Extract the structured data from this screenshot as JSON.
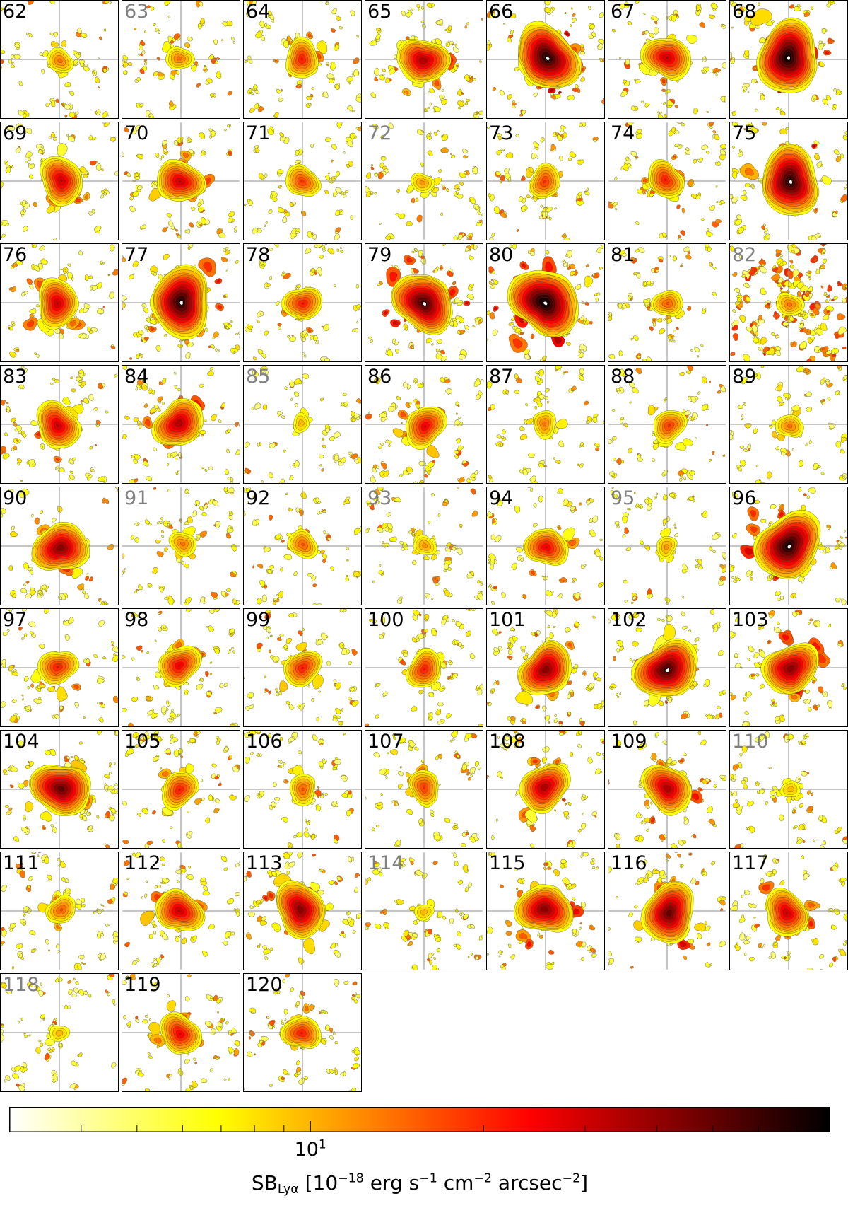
{
  "chart_data": {
    "type": "heatmap",
    "panels": [
      {
        "label": "62",
        "label_color": "#000000",
        "peak_sb": 13
      },
      {
        "label": "63",
        "label_color": "#808080",
        "peak_sb": 13
      },
      {
        "label": "64",
        "label_color": "#000000",
        "peak_sb": 21
      },
      {
        "label": "65",
        "label_color": "#000000",
        "peak_sb": 35
      },
      {
        "label": "66",
        "label_color": "#000000",
        "peak_sb": 68
      },
      {
        "label": "67",
        "label_color": "#000000",
        "peak_sb": 30
      },
      {
        "label": "68",
        "label_color": "#000000",
        "peak_sb": 75
      },
      {
        "label": "69",
        "label_color": "#000000",
        "peak_sb": 30
      },
      {
        "label": "70",
        "label_color": "#000000",
        "peak_sb": 30
      },
      {
        "label": "71",
        "label_color": "#000000",
        "peak_sb": 18
      },
      {
        "label": "72",
        "label_color": "#808080",
        "peak_sb": 11
      },
      {
        "label": "73",
        "label_color": "#000000",
        "peak_sb": 18
      },
      {
        "label": "74",
        "label_color": "#000000",
        "peak_sb": 21
      },
      {
        "label": "75",
        "label_color": "#000000",
        "peak_sb": 68
      },
      {
        "label": "76",
        "label_color": "#000000",
        "peak_sb": 30
      },
      {
        "label": "77",
        "label_color": "#000000",
        "peak_sb": 68
      },
      {
        "label": "78",
        "label_color": "#000000",
        "peak_sb": 21
      },
      {
        "label": "79",
        "label_color": "#000000",
        "peak_sb": 58
      },
      {
        "label": "80",
        "label_color": "#000000",
        "peak_sb": 80
      },
      {
        "label": "81",
        "label_color": "#000000",
        "peak_sb": 15
      },
      {
        "label": "82",
        "label_color": "#808080",
        "peak_sb": 13,
        "background": "high"
      },
      {
        "label": "83",
        "label_color": "#000000",
        "peak_sb": 30
      },
      {
        "label": "84",
        "label_color": "#000000",
        "peak_sb": 35
      },
      {
        "label": "85",
        "label_color": "#808080",
        "peak_sb": 9.5
      },
      {
        "label": "86",
        "label_color": "#000000",
        "peak_sb": 25
      },
      {
        "label": "87",
        "label_color": "#000000",
        "peak_sb": 13
      },
      {
        "label": "88",
        "label_color": "#000000",
        "peak_sb": 18
      },
      {
        "label": "89",
        "label_color": "#000000",
        "peak_sb": 13
      },
      {
        "label": "90",
        "label_color": "#000000",
        "peak_sb": 42
      },
      {
        "label": "91",
        "label_color": "#808080",
        "peak_sb": 13
      },
      {
        "label": "92",
        "label_color": "#000000",
        "peak_sb": 15
      },
      {
        "label": "93",
        "label_color": "#808080",
        "peak_sb": 11
      },
      {
        "label": "94",
        "label_color": "#000000",
        "peak_sb": 25
      },
      {
        "label": "95",
        "label_color": "#808080",
        "peak_sb": 11
      },
      {
        "label": "96",
        "label_color": "#000000",
        "peak_sb": 72
      },
      {
        "label": "97",
        "label_color": "#000000",
        "peak_sb": 21
      },
      {
        "label": "98",
        "label_color": "#000000",
        "peak_sb": 25
      },
      {
        "label": "99",
        "label_color": "#000000",
        "peak_sb": 21
      },
      {
        "label": "100",
        "label_color": "#000000",
        "peak_sb": 21
      },
      {
        "label": "101",
        "label_color": "#000000",
        "peak_sb": 42
      },
      {
        "label": "102",
        "label_color": "#000000",
        "peak_sb": 58
      },
      {
        "label": "103",
        "label_color": "#000000",
        "peak_sb": 42
      },
      {
        "label": "104",
        "label_color": "#000000",
        "peak_sb": 49
      },
      {
        "label": "105",
        "label_color": "#000000",
        "peak_sb": 21
      },
      {
        "label": "106",
        "label_color": "#000000",
        "peak_sb": 15
      },
      {
        "label": "107",
        "label_color": "#000000",
        "peak_sb": 18
      },
      {
        "label": "108",
        "label_color": "#000000",
        "peak_sb": 35
      },
      {
        "label": "109",
        "label_color": "#000000",
        "peak_sb": 35
      },
      {
        "label": "110",
        "label_color": "#808080",
        "peak_sb": 9.5
      },
      {
        "label": "111",
        "label_color": "#000000",
        "peak_sb": 15
      },
      {
        "label": "112",
        "label_color": "#000000",
        "peak_sb": 30
      },
      {
        "label": "113",
        "label_color": "#000000",
        "peak_sb": 42
      },
      {
        "label": "114",
        "label_color": "#808080",
        "peak_sb": 9.5
      },
      {
        "label": "115",
        "label_color": "#000000",
        "peak_sb": 42
      },
      {
        "label": "116",
        "label_color": "#000000",
        "peak_sb": 49
      },
      {
        "label": "117",
        "label_color": "#000000",
        "peak_sb": 30
      },
      {
        "label": "118",
        "label_color": "#808080",
        "peak_sb": 9.5
      },
      {
        "label": "119",
        "label_color": "#000000",
        "peak_sb": 25
      },
      {
        "label": "120",
        "label_color": "#000000",
        "peak_sb": 21
      }
    ],
    "colorbar": {
      "scale": "log",
      "range": [
        3,
        80
      ],
      "ticks": [
        4,
        5,
        6,
        7,
        8,
        9,
        10,
        20,
        30,
        40,
        50,
        60,
        70
      ],
      "major_ticks": [
        10
      ],
      "tick_label": {
        "value": 10,
        "base": "10",
        "exponent": "1"
      },
      "colormap_stops": [
        {
          "at": 0,
          "color": "#ffffff"
        },
        {
          "at": 0.254,
          "color": "#ffff00"
        },
        {
          "at": 0.635,
          "color": "#ff0000"
        },
        {
          "at": 1,
          "color": "#000000"
        }
      ],
      "label_parts": [
        {
          "text": "SB",
          "style": "normal"
        },
        {
          "text": "Lyα",
          "style": "sub"
        },
        {
          "text": " [10",
          "style": "normal"
        },
        {
          "text": "−18",
          "style": "sup"
        },
        {
          "text": " erg s",
          "style": "normal"
        },
        {
          "text": "−1",
          "style": "sup"
        },
        {
          "text": " cm",
          "style": "normal"
        },
        {
          "text": "−2",
          "style": "sup"
        },
        {
          "text": " arcsec",
          "style": "normal"
        },
        {
          "text": "−2",
          "style": "sup"
        },
        {
          "text": "]",
          "style": "normal"
        }
      ]
    }
  }
}
